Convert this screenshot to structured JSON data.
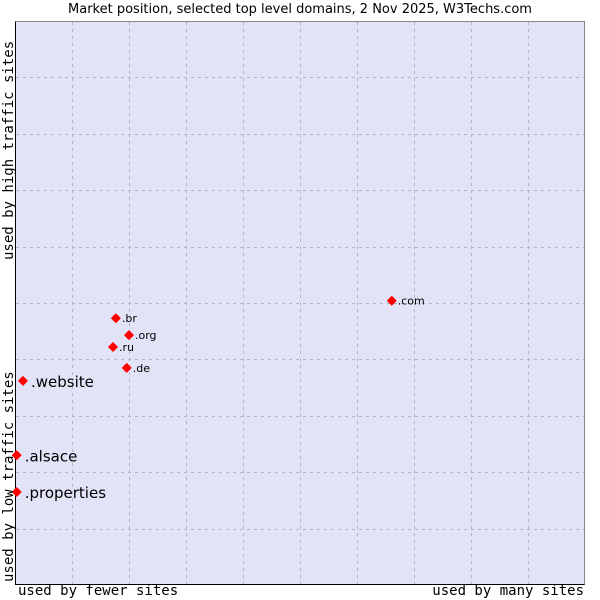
{
  "chart_data": {
    "type": "scatter",
    "title": "Market position, selected top level domains, 2 Nov 2025, W3Techs.com",
    "xlabel_left": "used by fewer sites",
    "xlabel_right": "used by many sites",
    "ylabel_bottom": "used by low traffic sites",
    "ylabel_top": "used by high traffic sites",
    "xlim": [
      0,
      10
    ],
    "ylim": [
      0,
      10
    ],
    "grid": true,
    "axis_tick_labels": false,
    "marker_color": "#ff0000",
    "background_color": "#e3e3f8",
    "points": [
      {
        "label": ".com",
        "x": 6.61,
        "y": 5.04,
        "label_size": "small"
      },
      {
        "label": ".br",
        "x": 1.77,
        "y": 4.73,
        "label_size": "small"
      },
      {
        "label": ".org",
        "x": 2.0,
        "y": 4.43,
        "label_size": "small"
      },
      {
        "label": ".ru",
        "x": 1.72,
        "y": 4.22,
        "label_size": "small"
      },
      {
        "label": ".de",
        "x": 1.96,
        "y": 3.85,
        "label_size": "small"
      },
      {
        "label": ".website",
        "x": 0.14,
        "y": 3.62,
        "label_size": "large"
      },
      {
        "label": ".alsace",
        "x": 0.03,
        "y": 2.3,
        "label_size": "large"
      },
      {
        "label": ".properties",
        "x": 0.03,
        "y": 1.65,
        "label_size": "large"
      }
    ]
  }
}
